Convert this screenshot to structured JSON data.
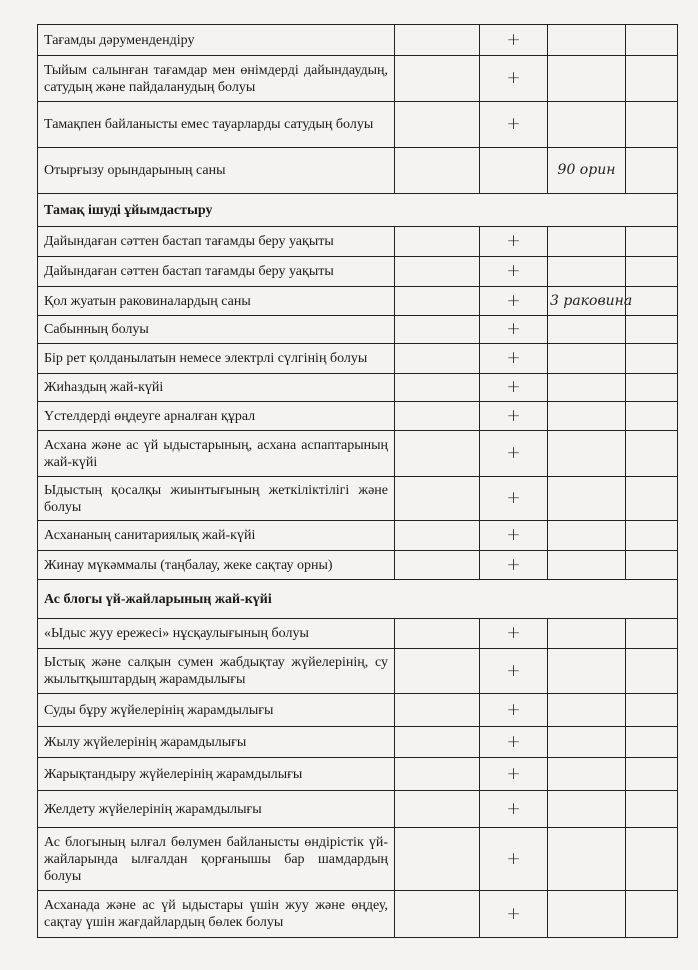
{
  "rows": [
    {
      "type": "item",
      "text": "Тағамды дәрумендендіру",
      "mark": "+",
      "note": "",
      "h": 31
    },
    {
      "type": "item",
      "text": "Тыйым салынған тағамдар мен өнімдерді дайындаудың, сатудың және пайдаланудың болуы",
      "mark": "+",
      "note": "",
      "h": 46
    },
    {
      "type": "item",
      "text": "Тамақпен байланысты емес тауарларды сатудың болуы",
      "mark": "+",
      "note": "",
      "h": 46
    },
    {
      "type": "item",
      "text": "Отырғызу орындарының саны",
      "mark": "",
      "note": "90 орин",
      "h": 46
    },
    {
      "type": "section",
      "text": "Тамақ ішуді ұйымдастыру",
      "h": 33
    },
    {
      "type": "item",
      "text": "Дайындаған сәттен бастап тағамды беру уақыты",
      "mark": "+",
      "note": "",
      "h": 30
    },
    {
      "type": "item",
      "text": "Дайындаған сәттен бастап тағамды беру уақыты",
      "mark": "+",
      "note": "",
      "h": 30
    },
    {
      "type": "item",
      "text": "Қол жуатын раковиналардың саны",
      "mark": "+",
      "note": "3 раковина",
      "h": 29
    },
    {
      "type": "item",
      "text": "Сабынның болуы",
      "mark": "+",
      "note": "",
      "h": 28
    },
    {
      "type": "item",
      "text": "Бір рет қолданылатын немесе электрлі сүлгінің болуы",
      "mark": "+",
      "note": "",
      "h": 30
    },
    {
      "type": "item",
      "text": "Жиһаздың жай-күйі",
      "mark": "+",
      "note": "",
      "h": 28
    },
    {
      "type": "item",
      "text": "Үстелдерді өңдеуге арналған құрал",
      "mark": "+",
      "note": "",
      "h": 29
    },
    {
      "type": "item",
      "text": "Асхана және ас үй ыдыстарының, асхана аспаптарының жай-күйі",
      "mark": "+",
      "note": "",
      "h": 46
    },
    {
      "type": "item",
      "text": "Ыдыстың қосалқы жиынтығының жеткіліктілігі және болуы",
      "mark": "+",
      "note": "",
      "h": 44
    },
    {
      "type": "item",
      "text": "Асхананың санитариялық жай-күйі",
      "mark": "+",
      "note": "",
      "h": 30
    },
    {
      "type": "item",
      "text": "Жинау мүкәммалы (таңбалау, жеке сақтау орны)",
      "mark": "+",
      "note": "",
      "h": 29
    },
    {
      "type": "section",
      "text": "Ас блогы үй-жайларының жай-күйі",
      "h": 39
    },
    {
      "type": "item",
      "text": "«Ыдыс жуу ережесі» нұсқаулығының болуы",
      "mark": "+",
      "note": "",
      "h": 30
    },
    {
      "type": "item",
      "text": "Ыстық және салқын сумен жабдықтау жүйелерінің, су жылытқыштардың жарамдылығы",
      "mark": "+",
      "note": "",
      "h": 45
    },
    {
      "type": "item",
      "text": "Суды бұру жүйелерінің жарамдылығы",
      "mark": "+",
      "note": "",
      "h": 33
    },
    {
      "type": "item",
      "text": "Жылу жүйелерінің жарамдылығы",
      "mark": "+",
      "note": "",
      "h": 31
    },
    {
      "type": "item",
      "text": "Жарықтандыру жүйелерінің жарамдылығы",
      "mark": "+",
      "note": "",
      "h": 33
    },
    {
      "type": "item",
      "text": "Желдету жүйелерінің жарамдылығы",
      "mark": "+",
      "note": "",
      "h": 37
    },
    {
      "type": "item",
      "text": "Ас блогының ылғал бөлумен байланысты өндірістік үй-жайларында ылғалдан қорғанышы бар шамдардың болуы",
      "mark": "+",
      "note": "",
      "h": 63
    },
    {
      "type": "item",
      "text": "Асханада және ас үй ыдыстары үшін жуу және өңдеу, сақтау үшін жағдайлардың бөлек болуы",
      "mark": "+",
      "note": "",
      "h": 47
    }
  ]
}
